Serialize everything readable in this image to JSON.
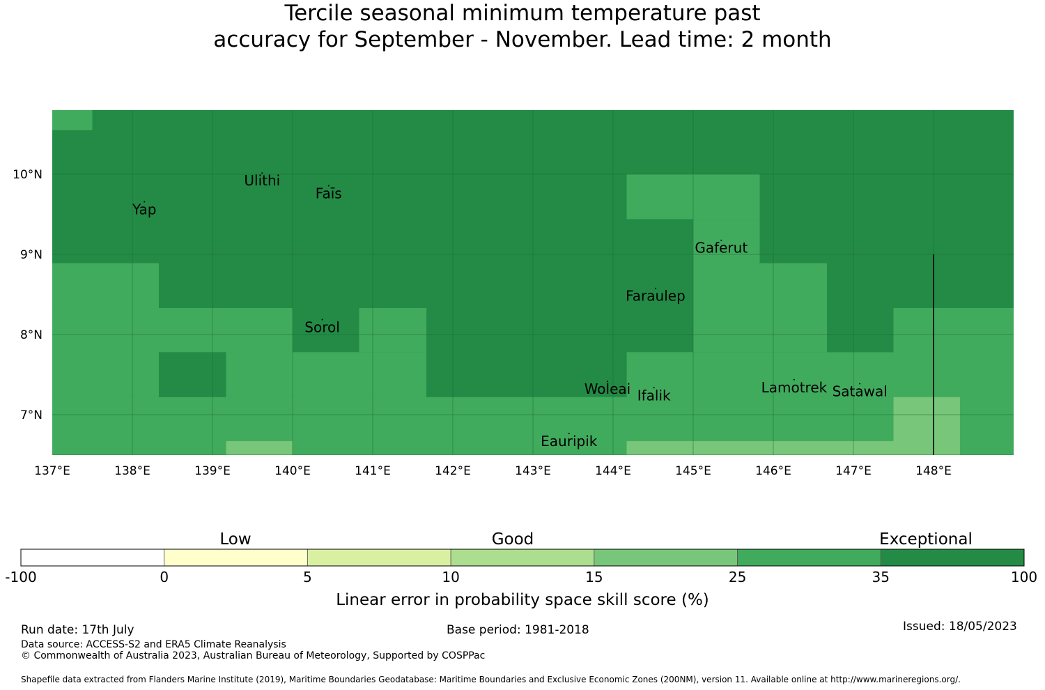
{
  "title": {
    "line1": "Tercile seasonal minimum temperature past",
    "line2": "accuracy for September - November. Lead time: 2 month"
  },
  "map": {
    "lon_range": [
      137,
      149
    ],
    "lat_range": [
      6.5,
      10.8
    ],
    "lon_ticks": [
      {
        "value": 137,
        "label": "137°E"
      },
      {
        "value": 138,
        "label": "138°E"
      },
      {
        "value": 139,
        "label": "139°E"
      },
      {
        "value": 140,
        "label": "140°E"
      },
      {
        "value": 141,
        "label": "141°E"
      },
      {
        "value": 142,
        "label": "142°E"
      },
      {
        "value": 143,
        "label": "143°E"
      },
      {
        "value": 144,
        "label": "144°E"
      },
      {
        "value": 145,
        "label": "145°E"
      },
      {
        "value": 146,
        "label": "146°E"
      },
      {
        "value": 147,
        "label": "147°E"
      },
      {
        "value": 148,
        "label": "148°E"
      }
    ],
    "lat_ticks": [
      {
        "value": 7,
        "label": "7°N"
      },
      {
        "value": 8,
        "label": "8°N"
      },
      {
        "value": 9,
        "label": "9°N"
      },
      {
        "value": 10,
        "label": "10°N"
      }
    ],
    "grid_lines": true,
    "category_colors": {
      "exceptional": "#238b45",
      "good_high": "#41ab5d",
      "good_mid": "#78c679"
    },
    "cells": [
      {
        "lon0": 137.0,
        "lon1": 137.5,
        "lat0": 10.55,
        "lat1": 10.8,
        "cat": "good_high"
      },
      {
        "lon0": 144.17,
        "lon1": 145.83,
        "lat0": 9.44,
        "lat1": 10.0,
        "cat": "good_high"
      },
      {
        "lon0": 145.0,
        "lon1": 145.83,
        "lat0": 8.89,
        "lat1": 9.44,
        "cat": "good_high"
      },
      {
        "lon0": 145.0,
        "lon1": 146.67,
        "lat0": 7.78,
        "lat1": 8.89,
        "cat": "good_high"
      },
      {
        "lon0": 137.0,
        "lon1": 138.33,
        "lat0": 8.33,
        "lat1": 8.89,
        "cat": "good_high"
      },
      {
        "lon0": 137.0,
        "lon1": 140.0,
        "lat0": 7.22,
        "lat1": 8.33,
        "cat": "good_high"
      },
      {
        "lon0": 140.0,
        "lon1": 141.67,
        "lat0": 7.22,
        "lat1": 7.78,
        "cat": "good_high"
      },
      {
        "lon0": 140.83,
        "lon1": 141.67,
        "lat0": 7.78,
        "lat1": 8.33,
        "cat": "good_high"
      },
      {
        "lon0": 137.0,
        "lon1": 149.0,
        "lat0": 6.5,
        "lat1": 7.22,
        "cat": "good_high"
      },
      {
        "lon0": 144.17,
        "lon1": 147.5,
        "lat0": 7.22,
        "lat1": 7.78,
        "cat": "good_high"
      },
      {
        "lon0": 147.5,
        "lon1": 149.0,
        "lat0": 7.22,
        "lat1": 8.33,
        "cat": "good_high"
      },
      {
        "lon0": 138.33,
        "lon1": 139.17,
        "lat0": 7.22,
        "lat1": 7.78,
        "cat": "exceptional"
      },
      {
        "lon0": 141.67,
        "lon1": 144.17,
        "lat0": 7.22,
        "lat1": 7.78,
        "cat": "exceptional"
      },
      {
        "lon0": 146.67,
        "lon1": 147.5,
        "lat0": 7.78,
        "lat1": 8.89,
        "cat": "exceptional"
      },
      {
        "lon0": 139.17,
        "lon1": 140.0,
        "lat0": 6.5,
        "lat1": 6.67,
        "cat": "good_mid"
      },
      {
        "lon0": 144.17,
        "lon1": 147.5,
        "lat0": 6.5,
        "lat1": 6.67,
        "cat": "good_mid"
      },
      {
        "lon0": 147.5,
        "lon1": 148.33,
        "lat0": 6.5,
        "lat1": 7.22,
        "cat": "good_mid"
      }
    ],
    "places": [
      {
        "name": "Yap",
        "lon": 138.15,
        "lat": 9.5
      },
      {
        "name": "Ulithi",
        "lon": 139.62,
        "lat": 9.86
      },
      {
        "name": "Faīs",
        "lon": 140.45,
        "lat": 9.7
      },
      {
        "name": "Gaferut",
        "lon": 145.35,
        "lat": 9.02
      },
      {
        "name": "Faraulep",
        "lon": 144.53,
        "lat": 8.42
      },
      {
        "name": "Sorol",
        "lon": 140.37,
        "lat": 8.03
      },
      {
        "name": "Woleai",
        "lon": 143.93,
        "lat": 7.26
      },
      {
        "name": "Ifalik",
        "lon": 144.51,
        "lat": 7.18
      },
      {
        "name": "Lamotrek",
        "lon": 146.26,
        "lat": 7.28
      },
      {
        "name": "Satawal",
        "lon": 147.08,
        "lat": 7.23
      },
      {
        "name": "Eauripik",
        "lon": 143.45,
        "lat": 6.61
      }
    ],
    "boundary_line": {
      "lon": 148.0,
      "lat0": 6.5,
      "lat1": 9.0
    }
  },
  "colorbar": {
    "categories": [
      {
        "label": "Low",
        "center": 338
      },
      {
        "label": "Good",
        "center": 736
      },
      {
        "label": "Exceptional",
        "center": 1329
      }
    ],
    "bins": [
      {
        "color": "#ffffff"
      },
      {
        "color": "#ffffcc"
      },
      {
        "color": "#d9f0a3"
      },
      {
        "color": "#addd8e"
      },
      {
        "color": "#78c679"
      },
      {
        "color": "#41ab5d"
      },
      {
        "color": "#238b45"
      }
    ],
    "ticks": [
      "-100",
      "0",
      "5",
      "10",
      "15",
      "25",
      "35",
      "100"
    ],
    "title": "Linear error in probability space skill score (%)"
  },
  "footer": {
    "run_date": "Run date: 17th July",
    "base_period": "Base period: 1981-2018",
    "issued": "Issued: 18/05/2023",
    "data_source": "Data source: ACCESS-S2 and ERA5 Climate Reanalysis",
    "copyright": "© Commonwealth of Australia 2023, Australian Bureau of Meteorology, Supported by COSPPac",
    "shapefile": "Shapefile data extracted from Flanders Marine Institute (2019), Maritime Boundaries Geodatabase: Maritime Boundaries and Exclusive Economic Zones (200NM), version 11. Available online at http://www.marineregions.org/."
  }
}
